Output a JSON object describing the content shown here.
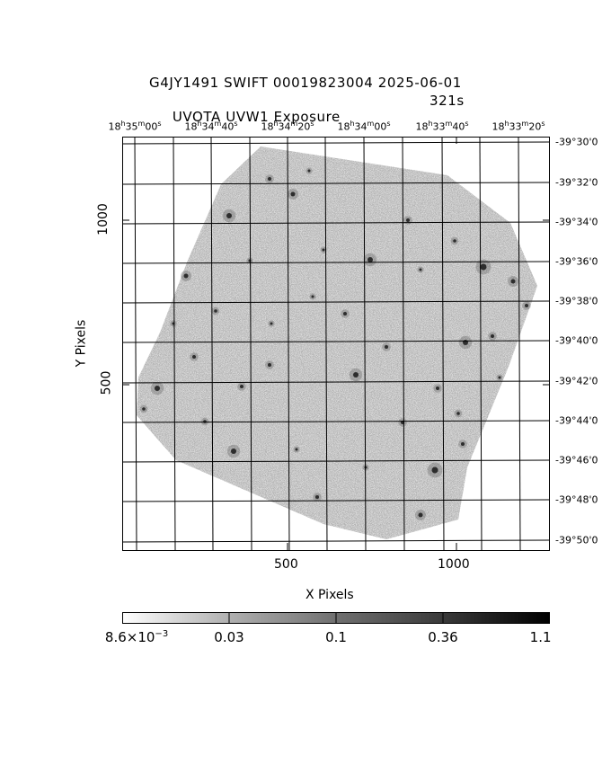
{
  "header": {
    "title_line1": "G4JY1491 SWIFT 00019823004 2025-06-01",
    "title_line2": "UVOTA UVW1 Exposure",
    "exposure": "321s"
  },
  "ra_axis": {
    "ticks": [
      {
        "h": "18",
        "m": "35",
        "s": "00"
      },
      {
        "h": "18",
        "m": "34",
        "s": "40"
      },
      {
        "h": "18",
        "m": "34",
        "s": "20"
      },
      {
        "h": "18",
        "m": "34",
        "s": "00"
      },
      {
        "h": "18",
        "m": "33",
        "s": "40"
      },
      {
        "h": "18",
        "m": "33",
        "s": "20"
      }
    ]
  },
  "dec_axis": {
    "ticks": [
      "-39°30'0",
      "-39°32'0",
      "-39°34'0",
      "-39°36'0",
      "-39°38'0",
      "-39°40'0",
      "-39°42'0",
      "-39°44'0",
      "-39°46'0",
      "-39°48'0",
      "-39°50'0"
    ]
  },
  "x_axis": {
    "label": "X Pixels",
    "ticks": [
      "500",
      "1000"
    ]
  },
  "y_axis": {
    "label": "Y Pixels",
    "ticks": [
      "500",
      "1000"
    ]
  },
  "colorbar": {
    "labels": [
      {
        "base": "8.6×10",
        "exp": "−3"
      },
      {
        "base": "0.03",
        "exp": ""
      },
      {
        "base": "0.1",
        "exp": ""
      },
      {
        "base": "0.36",
        "exp": ""
      },
      {
        "base": "1.1",
        "exp": ""
      }
    ]
  },
  "image": {
    "type": "grayscale sky exposure",
    "colors": {
      "background": "#ffffff",
      "noise": "#8a8a8a",
      "grid": "#000000"
    }
  }
}
